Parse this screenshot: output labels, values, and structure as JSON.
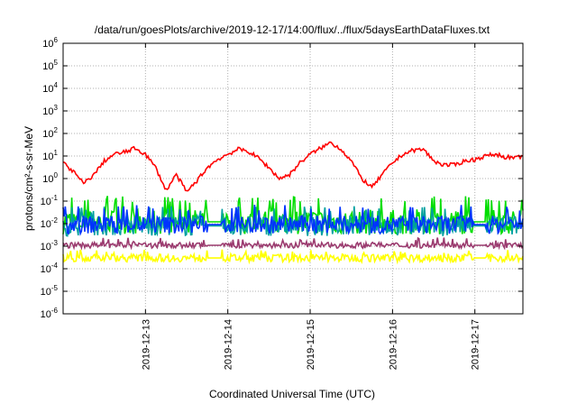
{
  "chart_data": {
    "type": "line",
    "title": "/data/run/goesPlots/archive/2019-12-17/14:00/flux/../flux/5daysEarthDataFluxes.txt",
    "xlabel": "Coordinated Universal Time (UTC)",
    "ylabel": "protons/cm²-s-sr-MeV",
    "y_scale": "log",
    "ylim": [
      1e-06,
      1000000.0
    ],
    "y_tick_exponents": [
      -6,
      -5,
      -4,
      -3,
      -2,
      -1,
      0,
      1,
      2,
      3,
      4,
      5,
      6
    ],
    "xlim": [
      "2019-12-12 00:00",
      "2019-12-17 14:00"
    ],
    "x_ticks": [
      "2019-12-13",
      "2019-12-14",
      "2019-12-15",
      "2019-12-16",
      "2019-12-17"
    ],
    "grid": true,
    "series": [
      {
        "color": "#ff0000",
        "x": [
          "2019-12-12 00:00",
          "2019-12-12 03:00",
          "2019-12-12 06:00",
          "2019-12-12 09:00",
          "2019-12-12 12:00",
          "2019-12-12 15:00",
          "2019-12-12 18:00",
          "2019-12-12 21:00",
          "2019-12-13 00:00",
          "2019-12-13 03:00",
          "2019-12-13 06:00",
          "2019-12-13 09:00",
          "2019-12-13 12:00",
          "2019-12-13 15:00",
          "2019-12-13 18:00",
          "2019-12-13 21:00",
          "2019-12-14 00:00",
          "2019-12-14 03:00",
          "2019-12-14 06:00",
          "2019-12-14 09:00",
          "2019-12-14 12:00",
          "2019-12-14 15:00",
          "2019-12-14 18:00",
          "2019-12-14 21:00",
          "2019-12-15 00:00",
          "2019-12-15 03:00",
          "2019-12-15 06:00",
          "2019-12-15 09:00",
          "2019-12-15 12:00",
          "2019-12-15 15:00",
          "2019-12-15 18:00",
          "2019-12-15 21:00",
          "2019-12-16 00:00",
          "2019-12-16 03:00",
          "2019-12-16 06:00",
          "2019-12-16 09:00",
          "2019-12-16 12:00",
          "2019-12-16 15:00",
          "2019-12-16 18:00",
          "2019-12-16 21:00",
          "2019-12-17 00:00",
          "2019-12-17 03:00",
          "2019-12-17 06:00",
          "2019-12-17 09:00",
          "2019-12-17 12:00",
          "2019-12-17 14:00"
        ],
        "y": [
          5,
          2,
          0.6,
          1.5,
          6,
          12,
          15,
          22,
          12,
          3,
          0.3,
          1.5,
          0.25,
          0.8,
          3,
          7,
          12,
          20,
          16,
          8,
          3,
          1,
          1.5,
          5,
          12,
          22,
          40,
          20,
          6,
          1,
          0.4,
          1.5,
          5,
          12,
          18,
          20,
          6,
          4,
          4,
          6,
          7,
          10,
          12,
          9,
          8,
          10
        ]
      }
    ]
  }
}
